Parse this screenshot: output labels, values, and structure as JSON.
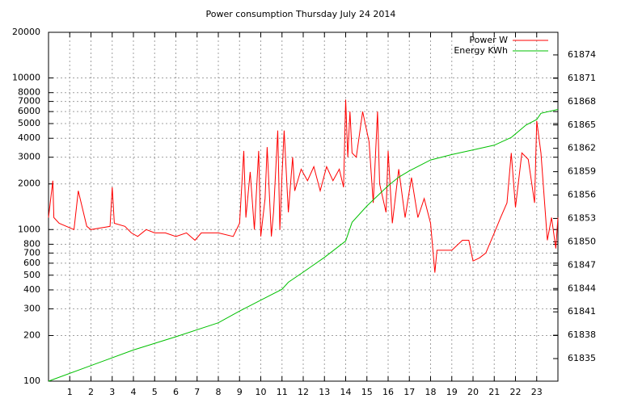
{
  "chart_data": {
    "type": "line",
    "title": "Power consumption Thursday July 24 2014",
    "xlim": [
      0,
      24
    ],
    "xticks": [
      1,
      2,
      3,
      4,
      5,
      6,
      7,
      8,
      9,
      10,
      11,
      12,
      13,
      14,
      15,
      16,
      17,
      18,
      19,
      20,
      21,
      22,
      23
    ],
    "ylim": [
      100,
      20000
    ],
    "yticks": [
      100,
      200,
      300,
      400,
      500,
      600,
      700,
      800,
      1000,
      2000,
      3000,
      4000,
      5000,
      6000,
      7000,
      8000,
      10000,
      20000
    ],
    "log_y": true,
    "y2lim": [
      61832.1,
      61876.9
    ],
    "y2ticks": [
      61835,
      61838,
      61841,
      61844,
      61847,
      61850,
      61853,
      61856,
      61859,
      61862,
      61865,
      61868,
      61871,
      61874
    ],
    "grid": true,
    "legend": "top-right",
    "series": [
      {
        "name": "Power W",
        "color": "#ff0000",
        "x": [
          0,
          0.2,
          0.25,
          0.5,
          1.2,
          1.4,
          1.8,
          2.0,
          2.9,
          3.0,
          3.1,
          3.6,
          3.9,
          4.2,
          4.6,
          5.0,
          5.5,
          6.0,
          6.5,
          6.9,
          7.2,
          8.0,
          8.7,
          9.0,
          9.2,
          9.3,
          9.5,
          9.7,
          9.9,
          10.0,
          10.2,
          10.3,
          10.5,
          10.6,
          10.8,
          10.9,
          11.0,
          11.1,
          11.3,
          11.5,
          11.6,
          11.9,
          12.2,
          12.5,
          12.8,
          13.1,
          13.4,
          13.7,
          13.9,
          14.0,
          14.1,
          14.2,
          14.3,
          14.5,
          14.8,
          15.1,
          15.3,
          15.5,
          15.6,
          15.9,
          16.0,
          16.2,
          16.5,
          16.8,
          17.1,
          17.4,
          17.7,
          18.0,
          18.2,
          18.3,
          19.0,
          19.5,
          19.8,
          20.0,
          20.3,
          20.6,
          21.0,
          21.3,
          21.6,
          21.8,
          22.0,
          22.3,
          22.6,
          22.9,
          23.0,
          23.2,
          23.5,
          23.7,
          23.9,
          24
        ],
        "values": [
          1200,
          2100,
          1200,
          1100,
          1000,
          1800,
          1050,
          1000,
          1050,
          1900,
          1100,
          1050,
          950,
          900,
          1000,
          950,
          950,
          900,
          950,
          850,
          950,
          950,
          900,
          1100,
          3300,
          1200,
          2400,
          1000,
          3300,
          900,
          1600,
          3500,
          900,
          1300,
          4500,
          1000,
          2300,
          4500,
          1300,
          3000,
          1800,
          2500,
          2100,
          2600,
          1800,
          2600,
          2100,
          2500,
          1900,
          7200,
          3000,
          6000,
          3200,
          3000,
          6000,
          3800,
          1500,
          6000,
          2000,
          1300,
          3300,
          1100,
          2500,
          1200,
          2200,
          1200,
          1600,
          1100,
          520,
          730,
          730,
          850,
          850,
          620,
          650,
          700,
          950,
          1200,
          1500,
          3200,
          1400,
          3200,
          2900,
          1500,
          5200,
          3200,
          850,
          1200,
          750,
          1200
        ]
      },
      {
        "name": "Energy KWh",
        "color": "#00c000",
        "axis": "y2",
        "x": [
          0,
          2,
          4,
          6,
          8,
          9,
          10,
          11,
          11.3,
          12,
          13,
          14,
          14.3,
          15,
          16,
          16.5,
          17,
          18,
          19,
          20,
          21,
          21.8,
          22.5,
          23,
          23.2,
          24
        ],
        "values": [
          61832.1,
          61834.1,
          61836.1,
          61837.8,
          61839.6,
          61841.1,
          61842.5,
          61843.9,
          61844.8,
          61846.1,
          61848.0,
          61850.1,
          61852.5,
          61854.6,
          61857.2,
          61858.3,
          61859.1,
          61860.5,
          61861.2,
          61861.8,
          61862.4,
          61863.4,
          61865.0,
          61865.7,
          61866.5,
          61867.0
        ]
      }
    ]
  }
}
